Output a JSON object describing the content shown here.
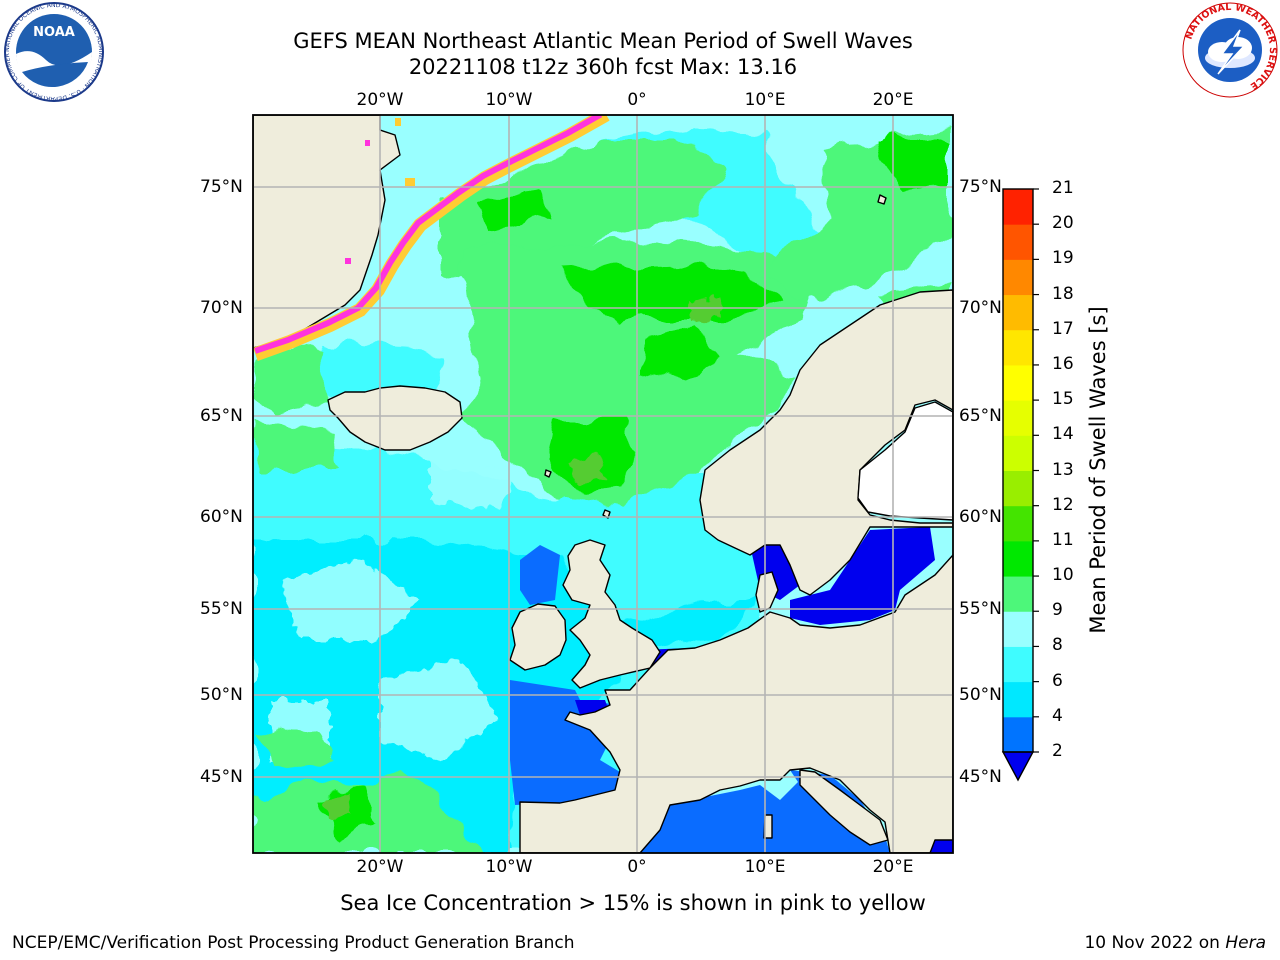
{
  "title": {
    "line1": "GEFS MEAN Northeast Atlantic Mean Period of Swell Waves",
    "line2": "20221108 t12z 360h fcst   Max: 13.16"
  },
  "map": {
    "lon_labels": [
      "20°W",
      "10°W",
      "0°",
      "10°E",
      "20°E"
    ],
    "lat_labels": [
      "75°N",
      "70°N",
      "65°N",
      "60°N",
      "55°N",
      "50°N",
      "45°N"
    ],
    "colors": {
      "land": "#efeddc",
      "ice_pink": "#ff33dd",
      "ice_yellow": "#ffcc33",
      "grid": "#b4b4b4"
    }
  },
  "colorbar": {
    "label": "Mean Period of Swell Waves [s]",
    "ticks": [
      "2",
      "4",
      "6",
      "8",
      "9",
      "10",
      "11",
      "12",
      "13",
      "14",
      "15",
      "16",
      "17",
      "18",
      "19",
      "20",
      "21"
    ],
    "colors": [
      "#0074ff",
      "#00e8ff",
      "#3ffcff",
      "#99ffff",
      "#4df77a",
      "#00e800",
      "#44e400",
      "#99ee00",
      "#ccff00",
      "#e6ff00",
      "#ffff00",
      "#ffe600",
      "#ffbb00",
      "#ff8800",
      "#ff5500",
      "#ff2200",
      "#0000ee"
    ]
  },
  "caption": "Sea Ice Concentration > 15% is shown in pink to yellow",
  "footer": {
    "left": "NCEP/EMC/Verification Post Processing Product Generation Branch",
    "right_date": "10 Nov 2022 on ",
    "right_host": "Hera"
  },
  "logos": {
    "noaa_text": "NOAA",
    "noaa_ring": "NATIONAL OCEANIC AND ATMOSPHERIC ADMINISTRATION · U.S. DEPARTMENT OF COMMERCE",
    "nws_ring": "NATIONAL WEATHER SERVICE"
  }
}
